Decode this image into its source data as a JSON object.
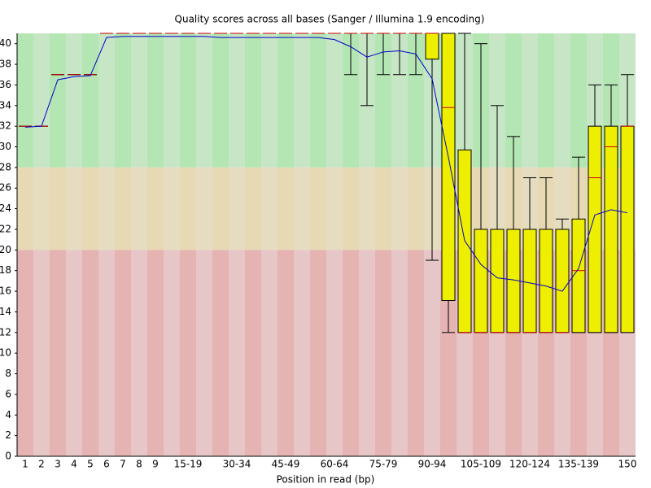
{
  "chart_data": {
    "type": "boxplot",
    "title": "Quality scores across all bases (Sanger / Illumina 1.9 encoding)",
    "x_label": "Position in read (bp)",
    "categories": [
      "1",
      "2",
      "3",
      "4",
      "5",
      "6",
      "7",
      "8",
      "9",
      null,
      "15-19",
      null,
      null,
      "30-34",
      null,
      null,
      "45-49",
      null,
      null,
      "60-64",
      null,
      null,
      "75-79",
      null,
      null,
      "90-94",
      null,
      null,
      "105-109",
      null,
      null,
      "120-124",
      null,
      null,
      "135-139",
      null,
      null,
      "150"
    ],
    "median": [
      32,
      32,
      37,
      37,
      37,
      41,
      41,
      41,
      41,
      41,
      41,
      41,
      41,
      41,
      41,
      41,
      41,
      41,
      41,
      41,
      41,
      41,
      41,
      41,
      41,
      41,
      33.8,
      12,
      12,
      12,
      12,
      12,
      12,
      12,
      18,
      27,
      30,
      32
    ],
    "q1": [
      32,
      32,
      37,
      37,
      37,
      41,
      41,
      41,
      41,
      41,
      41,
      41,
      41,
      41,
      41,
      41,
      41,
      41,
      41,
      41,
      41,
      41,
      41,
      41,
      41,
      38.5,
      15.1,
      12,
      12,
      12,
      12,
      12,
      12,
      12,
      12,
      12,
      12,
      12
    ],
    "q3": [
      32,
      32,
      37,
      37,
      37,
      41,
      41,
      41,
      41,
      41,
      41,
      41,
      41,
      41,
      41,
      41,
      41,
      41,
      41,
      41,
      41,
      41,
      41,
      41,
      41,
      41,
      41,
      29.7,
      22,
      22,
      22,
      22,
      22,
      22,
      23,
      32,
      32,
      32
    ],
    "whisker_low": [
      32,
      32,
      37,
      37,
      37,
      41,
      41,
      41,
      41,
      41,
      41,
      41,
      41,
      41,
      41,
      41,
      41,
      41,
      41,
      41,
      37,
      34,
      37,
      37,
      37,
      19,
      12,
      12,
      12,
      12,
      12,
      12,
      12,
      12,
      12,
      12,
      12,
      12
    ],
    "whisker_high": [
      32,
      32,
      37,
      37,
      37,
      41,
      41,
      41,
      41,
      41,
      41,
      41,
      41,
      41,
      41,
      41,
      41,
      41,
      41,
      41,
      41,
      41,
      41,
      41,
      41,
      41,
      41,
      41,
      40,
      34,
      31,
      27,
      27,
      23,
      29,
      36,
      36,
      37
    ],
    "mean": [
      31.9,
      32.0,
      36.5,
      36.8,
      36.9,
      40.6,
      40.7,
      40.7,
      40.7,
      40.7,
      40.7,
      40.7,
      40.6,
      40.6,
      40.6,
      40.6,
      40.6,
      40.6,
      40.6,
      40.4,
      39.7,
      38.7,
      39.2,
      39.3,
      39.0,
      36.6,
      29,
      20.9,
      18.6,
      17.3,
      17.1,
      16.8,
      16.5,
      16.0,
      18.2,
      23.4,
      23.9,
      23.6
    ],
    "ylim": [
      0,
      41
    ],
    "yticks": [
      0,
      2,
      4,
      6,
      8,
      10,
      12,
      14,
      16,
      18,
      20,
      22,
      24,
      26,
      28,
      30,
      32,
      34,
      36,
      38,
      40
    ],
    "bands": [
      {
        "ylim": [
          28,
          41
        ],
        "colors": [
          "#b3e6b3",
          "#c6e6c6"
        ]
      },
      {
        "ylim": [
          20,
          28
        ],
        "colors": [
          "#e6d9b3",
          "#e6dcc0"
        ]
      },
      {
        "ylim": [
          0,
          20
        ],
        "colors": [
          "#e6b3b3",
          "#e6c6c6"
        ]
      }
    ],
    "box_color": "#eeee00",
    "median_color": "#cc0000",
    "mean_color": "#0000cc"
  }
}
